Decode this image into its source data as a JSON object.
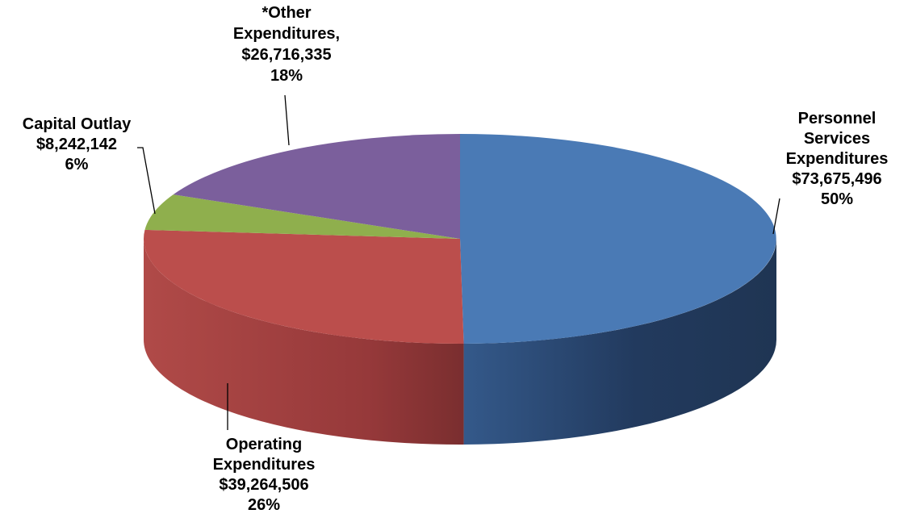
{
  "chart_data": {
    "type": "pie",
    "style": "3d",
    "title": "",
    "slices": [
      {
        "name": "Personnel Services Expenditures",
        "value": 73675496,
        "percent": 50,
        "color": "#4a7ab5",
        "side_color": "#28446e",
        "label_lines": [
          "Personnel",
          "Services",
          "Expenditures",
          "$73,675,496",
          "50%"
        ]
      },
      {
        "name": "Operating Expenditures",
        "value": 39264506,
        "percent": 26,
        "color": "#bb4e4c",
        "side_color": "#8c3433",
        "label_lines": [
          "Operating",
          "Expenditures",
          "$39,264,506",
          "26%"
        ]
      },
      {
        "name": "Capital Outlay",
        "value": 8242142,
        "percent": 6,
        "color": "#8faf4d",
        "side_color": "#6a8738",
        "label_lines": [
          "Capital Outlay",
          "$8,242,142",
          "6%"
        ]
      },
      {
        "name": "*Other Expenditures",
        "value": 26716335,
        "percent": 18,
        "color": "#7b5f9c",
        "side_color": "#5a4575",
        "label_lines": [
          "*Other",
          "Expenditures,",
          "$26,716,335",
          "18%"
        ]
      }
    ]
  }
}
